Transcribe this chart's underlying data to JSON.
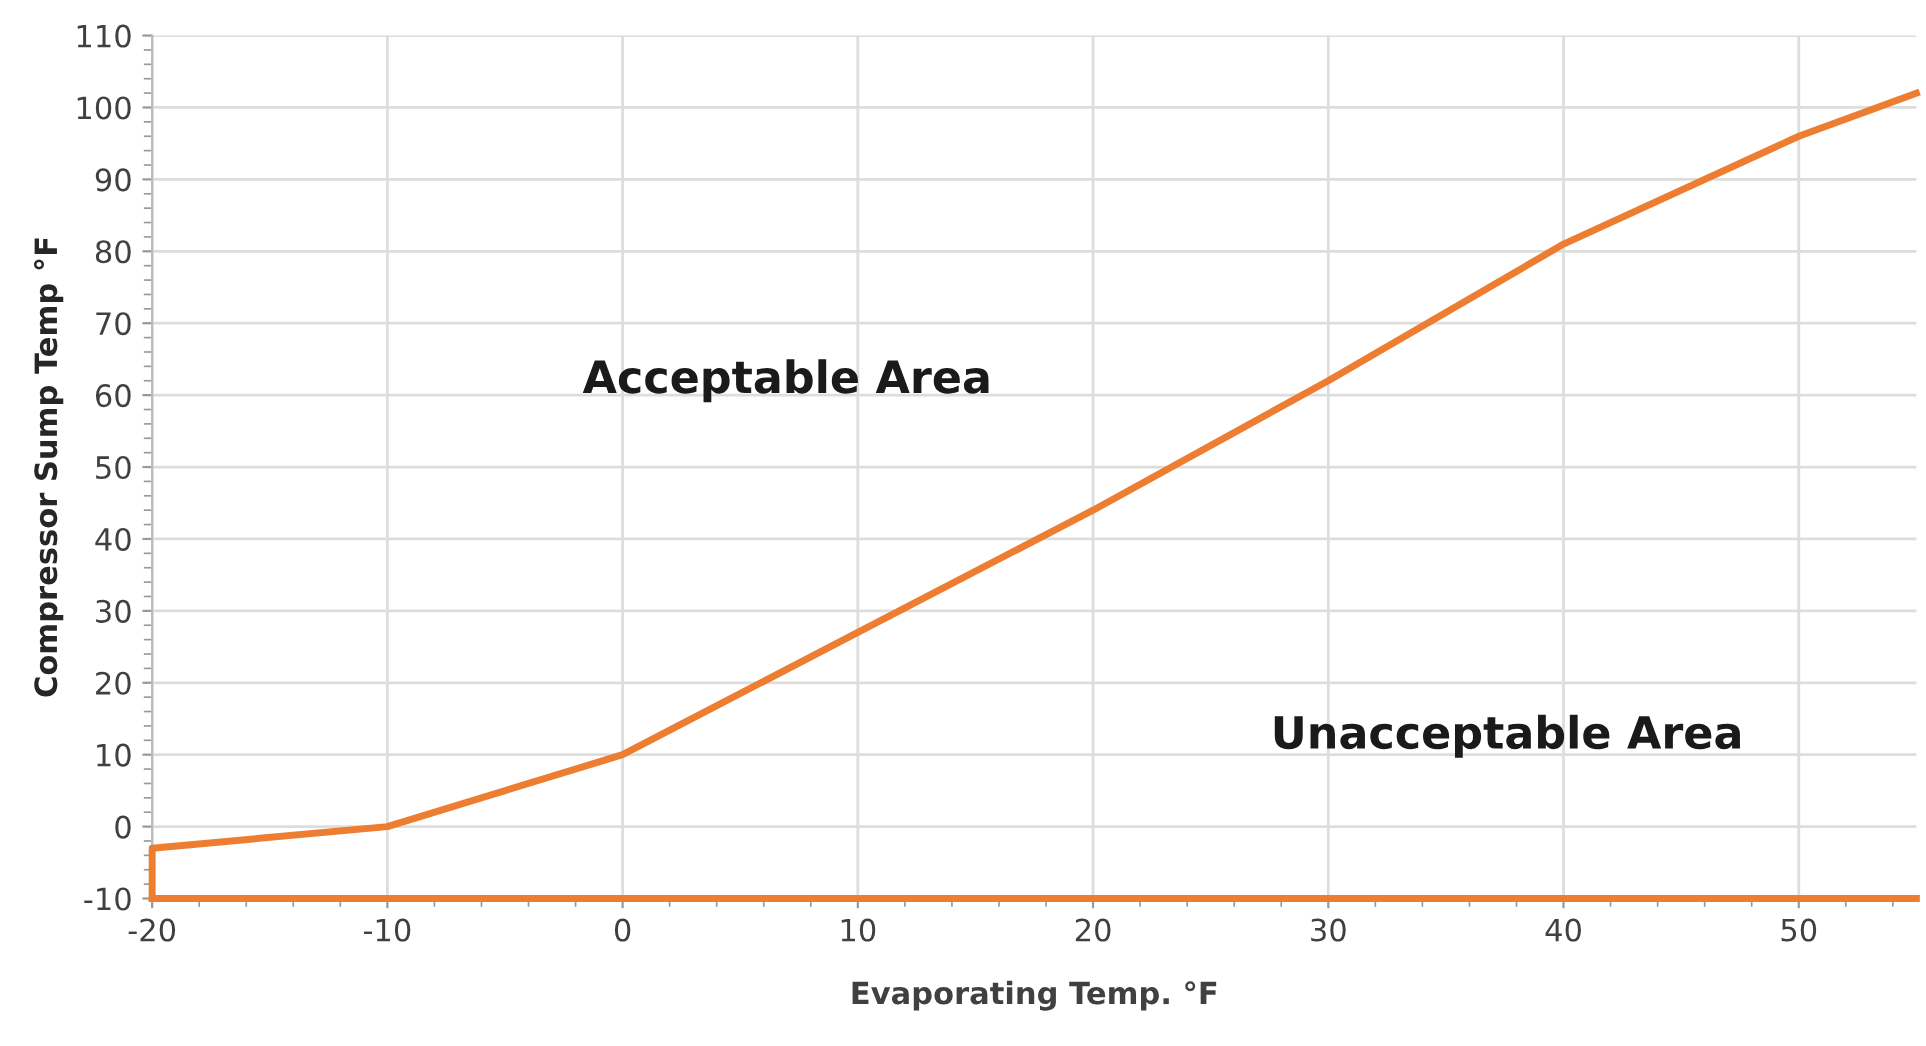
{
  "chart_data": {
    "type": "line",
    "xlabel": "Evaporating Temp. °F",
    "ylabel": "Compressor Sump Temp °F",
    "x": [
      -20,
      -20,
      -10,
      0,
      10,
      20,
      30,
      40,
      50,
      55
    ],
    "series": [
      {
        "color": "#ed7d31",
        "values": [
          -10,
          -3,
          0,
          10,
          27,
          44,
          62,
          81,
          96,
          102
        ]
      },
      {
        "color": "#ed7d31",
        "x": [
          -20,
          55
        ],
        "values": [
          -10,
          -10
        ]
      }
    ],
    "xlim": [
      -20,
      55
    ],
    "xticks": [
      -20,
      -10,
      0,
      10,
      20,
      30,
      40,
      50
    ],
    "ylim": [
      -10,
      110
    ],
    "yticks": [
      -10,
      0,
      10,
      20,
      30,
      40,
      50,
      60,
      70,
      80,
      90,
      100,
      110
    ],
    "annotations": [
      "Acceptable Area",
      "Unacceptable Area"
    ],
    "grid": true,
    "marker": "none",
    "line_style": "solid",
    "legend": false
  }
}
